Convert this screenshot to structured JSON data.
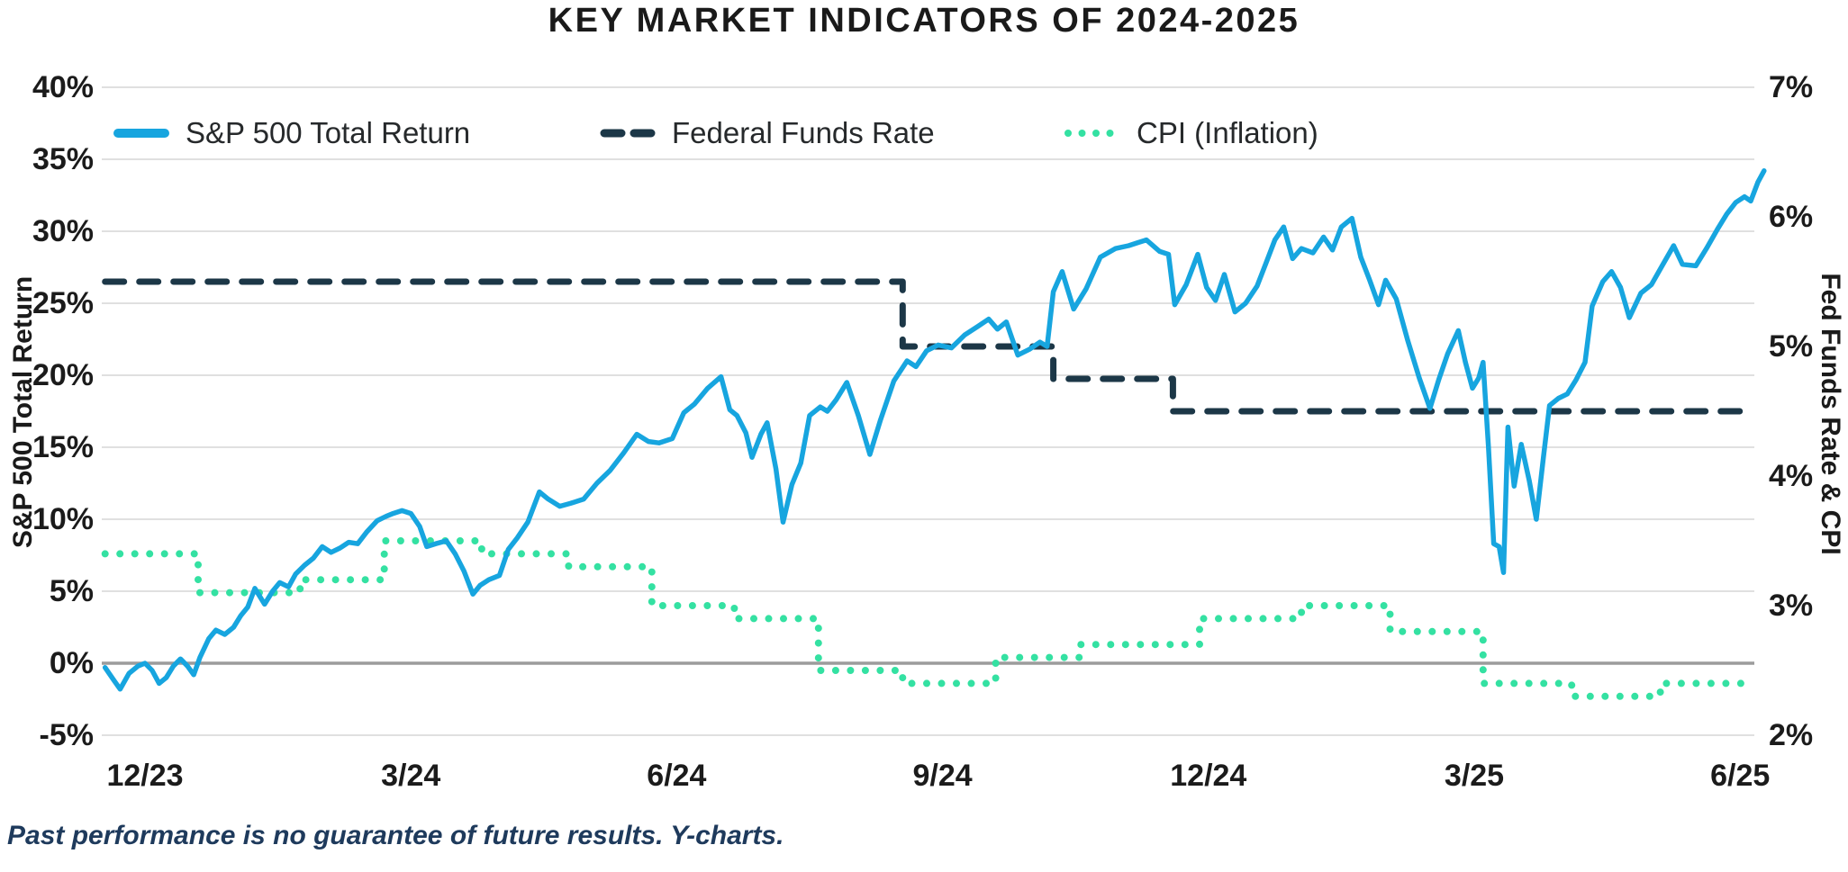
{
  "colors": {
    "sp500": "#17a5df",
    "fed_funds": "#1c3747",
    "cpi": "#34e1a2",
    "grid": "#cdcdcd",
    "zero_line": "#9c9c9c",
    "title_text": "#1a1a1a",
    "tick_text": "#1b1b1b",
    "legend_text": "#26292b",
    "footer_text": "#1e3a5c",
    "background": "#ffffff"
  },
  "footer": {
    "text": "Past performance is no guarantee of future results. Y-charts."
  },
  "chart_data": {
    "type": "line",
    "title": "KEY MARKET INDICATORS OF 2024-2025",
    "grid": true,
    "legend_position": "top-left-inside",
    "x_axis": {
      "unit": "months since Dec 2023 month-end",
      "tick_labels": [
        "12/23",
        "3/24",
        "6/24",
        "9/24",
        "12/24",
        "3/25",
        "6/25"
      ],
      "tick_positions_months": [
        0,
        3,
        6,
        9,
        12,
        15,
        18
      ],
      "domain_months": [
        -0.45,
        18.27
      ]
    },
    "y_left": {
      "label": "S&P 500 Total Return",
      "unit": "%",
      "range": [
        -5,
        40
      ],
      "tick_values": [
        40,
        35,
        30,
        25,
        20,
        15,
        10,
        5,
        0,
        -5
      ],
      "tick_labels": [
        "40%",
        "35%",
        "30%",
        "25%",
        "20%",
        "15%",
        "10%",
        "5%",
        "0%",
        "-5%"
      ]
    },
    "y_right": {
      "label": "Fed Funds Rate & CPI",
      "unit": "%",
      "range": [
        2,
        7
      ],
      "tick_values": [
        7,
        6,
        5,
        4,
        3,
        2
      ],
      "tick_labels": [
        "7%",
        "6%",
        "5%",
        "4%",
        "3%",
        "2%"
      ]
    },
    "series": [
      {
        "name": "S&P 500 Total Return",
        "axis": "left",
        "line_style": "solid",
        "color": "#17a5df",
        "points": [
          [
            -0.45,
            -0.3
          ],
          [
            -0.35,
            -1.2
          ],
          [
            -0.28,
            -1.8
          ],
          [
            -0.18,
            -0.7
          ],
          [
            -0.08,
            -0.2
          ],
          [
            0,
            0
          ],
          [
            0.08,
            -0.5
          ],
          [
            0.16,
            -1.4
          ],
          [
            0.24,
            -1.0
          ],
          [
            0.32,
            -0.2
          ],
          [
            0.4,
            0.3
          ],
          [
            0.48,
            -0.2
          ],
          [
            0.55,
            -0.8
          ],
          [
            0.62,
            0.4
          ],
          [
            0.72,
            1.7
          ],
          [
            0.8,
            2.3
          ],
          [
            0.9,
            2.0
          ],
          [
            1.0,
            2.5
          ],
          [
            1.08,
            3.3
          ],
          [
            1.16,
            3.9
          ],
          [
            1.24,
            5.2
          ],
          [
            1.35,
            4.1
          ],
          [
            1.44,
            5.0
          ],
          [
            1.52,
            5.6
          ],
          [
            1.62,
            5.3
          ],
          [
            1.7,
            6.2
          ],
          [
            1.8,
            6.8
          ],
          [
            1.9,
            7.3
          ],
          [
            2.0,
            8.1
          ],
          [
            2.1,
            7.7
          ],
          [
            2.2,
            8.0
          ],
          [
            2.3,
            8.4
          ],
          [
            2.4,
            8.3
          ],
          [
            2.5,
            9.1
          ],
          [
            2.62,
            9.9
          ],
          [
            2.72,
            10.2
          ],
          [
            2.8,
            10.4
          ],
          [
            2.9,
            10.6
          ],
          [
            3.0,
            10.4
          ],
          [
            3.1,
            9.5
          ],
          [
            3.18,
            8.1
          ],
          [
            3.28,
            8.3
          ],
          [
            3.4,
            8.5
          ],
          [
            3.5,
            7.6
          ],
          [
            3.6,
            6.4
          ],
          [
            3.7,
            4.8
          ],
          [
            3.78,
            5.4
          ],
          [
            3.88,
            5.8
          ],
          [
            4.0,
            6.1
          ],
          [
            4.1,
            7.9
          ],
          [
            4.2,
            8.7
          ],
          [
            4.32,
            9.8
          ],
          [
            4.45,
            11.9
          ],
          [
            4.55,
            11.4
          ],
          [
            4.68,
            10.9
          ],
          [
            4.8,
            11.1
          ],
          [
            4.95,
            11.4
          ],
          [
            5.1,
            12.5
          ],
          [
            5.25,
            13.4
          ],
          [
            5.4,
            14.6
          ],
          [
            5.55,
            15.9
          ],
          [
            5.68,
            15.4
          ],
          [
            5.8,
            15.3
          ],
          [
            5.95,
            15.6
          ],
          [
            6.08,
            17.4
          ],
          [
            6.2,
            18.0
          ],
          [
            6.35,
            19.1
          ],
          [
            6.5,
            19.9
          ],
          [
            6.6,
            17.6
          ],
          [
            6.68,
            17.2
          ],
          [
            6.78,
            16.0
          ],
          [
            6.85,
            14.3
          ],
          [
            6.95,
            15.9
          ],
          [
            7.02,
            16.7
          ],
          [
            7.12,
            13.5
          ],
          [
            7.2,
            9.8
          ],
          [
            7.3,
            12.4
          ],
          [
            7.4,
            13.9
          ],
          [
            7.5,
            17.2
          ],
          [
            7.62,
            17.8
          ],
          [
            7.7,
            17.5
          ],
          [
            7.8,
            18.3
          ],
          [
            7.92,
            19.5
          ],
          [
            8.05,
            17.2
          ],
          [
            8.18,
            14.5
          ],
          [
            8.3,
            16.9
          ],
          [
            8.45,
            19.6
          ],
          [
            8.6,
            21.0
          ],
          [
            8.7,
            20.6
          ],
          [
            8.82,
            21.7
          ],
          [
            8.95,
            22.1
          ],
          [
            9.1,
            21.9
          ],
          [
            9.25,
            22.8
          ],
          [
            9.4,
            23.4
          ],
          [
            9.52,
            23.9
          ],
          [
            9.62,
            23.2
          ],
          [
            9.72,
            23.7
          ],
          [
            9.85,
            21.4
          ],
          [
            9.98,
            21.8
          ],
          [
            10.1,
            22.3
          ],
          [
            10.18,
            22.0
          ],
          [
            10.25,
            25.8
          ],
          [
            10.35,
            27.2
          ],
          [
            10.48,
            24.6
          ],
          [
            10.62,
            26.0
          ],
          [
            10.78,
            28.2
          ],
          [
            10.95,
            28.8
          ],
          [
            11.1,
            29.0
          ],
          [
            11.2,
            29.2
          ],
          [
            11.3,
            29.4
          ],
          [
            11.45,
            28.6
          ],
          [
            11.55,
            28.4
          ],
          [
            11.62,
            24.9
          ],
          [
            11.75,
            26.3
          ],
          [
            11.88,
            28.4
          ],
          [
            11.98,
            26.1
          ],
          [
            12.08,
            25.2
          ],
          [
            12.18,
            27.0
          ],
          [
            12.3,
            24.4
          ],
          [
            12.42,
            25.0
          ],
          [
            12.55,
            26.2
          ],
          [
            12.65,
            27.8
          ],
          [
            12.75,
            29.4
          ],
          [
            12.85,
            30.3
          ],
          [
            12.95,
            28.1
          ],
          [
            13.05,
            28.8
          ],
          [
            13.18,
            28.5
          ],
          [
            13.3,
            29.6
          ],
          [
            13.4,
            28.7
          ],
          [
            13.5,
            30.3
          ],
          [
            13.62,
            30.9
          ],
          [
            13.72,
            28.2
          ],
          [
            13.82,
            26.6
          ],
          [
            13.92,
            24.9
          ],
          [
            14.0,
            26.6
          ],
          [
            14.12,
            25.3
          ],
          [
            14.25,
            22.4
          ],
          [
            14.38,
            19.8
          ],
          [
            14.5,
            17.7
          ],
          [
            14.6,
            19.7
          ],
          [
            14.7,
            21.5
          ],
          [
            14.82,
            23.1
          ],
          [
            14.9,
            20.9
          ],
          [
            14.98,
            19.1
          ],
          [
            15.05,
            19.8
          ],
          [
            15.1,
            20.9
          ],
          [
            15.16,
            15.1
          ],
          [
            15.22,
            8.3
          ],
          [
            15.28,
            8.1
          ],
          [
            15.33,
            6.3
          ],
          [
            15.38,
            16.4
          ],
          [
            15.45,
            12.3
          ],
          [
            15.53,
            15.2
          ],
          [
            15.62,
            12.7
          ],
          [
            15.7,
            10.0
          ],
          [
            15.78,
            14.3
          ],
          [
            15.85,
            17.9
          ],
          [
            15.95,
            18.4
          ],
          [
            16.05,
            18.7
          ],
          [
            16.15,
            19.7
          ],
          [
            16.25,
            20.9
          ],
          [
            16.33,
            24.8
          ],
          [
            16.45,
            26.5
          ],
          [
            16.55,
            27.2
          ],
          [
            16.65,
            26.1
          ],
          [
            16.75,
            24.0
          ],
          [
            16.88,
            25.7
          ],
          [
            17.0,
            26.3
          ],
          [
            17.12,
            27.6
          ],
          [
            17.25,
            29.0
          ],
          [
            17.35,
            27.7
          ],
          [
            17.5,
            27.6
          ],
          [
            17.62,
            28.8
          ],
          [
            17.75,
            30.2
          ],
          [
            17.85,
            31.2
          ],
          [
            17.95,
            32.0
          ],
          [
            18.05,
            32.4
          ],
          [
            18.12,
            32.1
          ],
          [
            18.2,
            33.4
          ],
          [
            18.27,
            34.2
          ]
        ]
      },
      {
        "name": "Federal Funds Rate",
        "axis": "right",
        "line_style": "dashed",
        "color": "#1c3747",
        "steps": [
          [
            -0.45,
            8.55,
            5.5
          ],
          [
            8.55,
            10.25,
            5.0
          ],
          [
            10.25,
            11.6,
            4.75
          ],
          [
            11.6,
            18.16,
            4.5
          ]
        ]
      },
      {
        "name": "CPI (Inflation)",
        "axis": "right",
        "line_style": "dotted",
        "color": "#34e1a2",
        "steps": [
          [
            -0.45,
            0.6,
            3.4
          ],
          [
            0.6,
            1.75,
            3.1
          ],
          [
            1.75,
            2.7,
            3.2
          ],
          [
            2.7,
            3.8,
            3.5
          ],
          [
            3.8,
            4.78,
            3.4
          ],
          [
            4.78,
            5.72,
            3.3
          ],
          [
            5.72,
            6.65,
            3.0
          ],
          [
            6.65,
            7.6,
            2.9
          ],
          [
            7.6,
            8.55,
            2.5
          ],
          [
            8.55,
            9.6,
            2.4
          ],
          [
            9.6,
            10.55,
            2.6
          ],
          [
            10.55,
            11.9,
            2.7
          ],
          [
            11.9,
            13.05,
            2.9
          ],
          [
            13.05,
            14.05,
            3.0
          ],
          [
            14.05,
            15.1,
            2.8
          ],
          [
            15.1,
            16.1,
            2.4
          ],
          [
            16.1,
            17.1,
            2.3
          ],
          [
            17.1,
            18.16,
            2.4
          ]
        ]
      }
    ]
  }
}
